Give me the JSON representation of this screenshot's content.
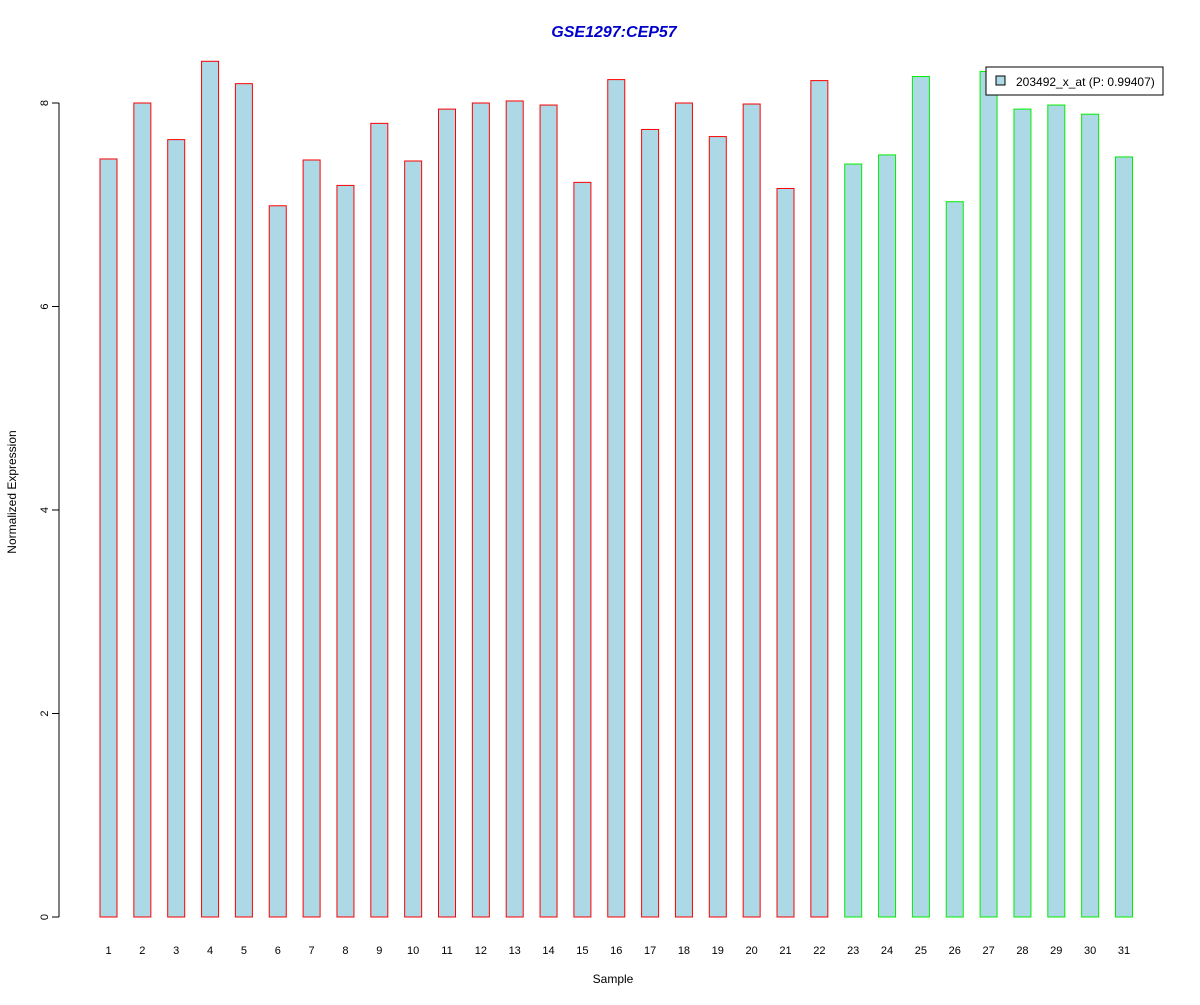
{
  "colors": {
    "title": "#0000CC",
    "bar_fill": "#ADD8E6",
    "group1_border": "#FF0000",
    "group2_border": "#00EE00",
    "axis": "#000000"
  },
  "chart_data": {
    "type": "bar",
    "title": "GSE1297:CEP57",
    "xlabel": "Sample",
    "ylabel": "Normalized Expression",
    "ylim": [
      0,
      8.5
    ],
    "yticks": [
      0,
      2,
      4,
      6,
      8
    ],
    "grid": false,
    "legend": {
      "position": "top-right",
      "label": "203492_x_at (P: 0.99407)"
    },
    "categories": [
      "1",
      "2",
      "3",
      "4",
      "5",
      "6",
      "7",
      "8",
      "9",
      "10",
      "11",
      "12",
      "13",
      "14",
      "15",
      "16",
      "17",
      "18",
      "19",
      "20",
      "21",
      "22",
      "23",
      "24",
      "25",
      "26",
      "27",
      "28",
      "29",
      "30",
      "31"
    ],
    "series": [
      {
        "name": "203492_x_at (P: 0.99407)",
        "values": [
          7.45,
          8.0,
          7.64,
          8.41,
          8.19,
          6.99,
          7.44,
          7.19,
          7.8,
          7.43,
          7.94,
          8.0,
          8.02,
          7.98,
          7.22,
          8.23,
          7.74,
          8.0,
          7.67,
          7.99,
          7.16,
          8.22,
          7.4,
          7.49,
          8.26,
          7.03,
          8.31,
          7.94,
          7.98,
          7.89,
          7.47
        ],
        "group": [
          1,
          1,
          1,
          1,
          1,
          1,
          1,
          1,
          1,
          1,
          1,
          1,
          1,
          1,
          1,
          1,
          1,
          1,
          1,
          1,
          1,
          1,
          2,
          2,
          2,
          2,
          2,
          2,
          2,
          2,
          2
        ]
      }
    ]
  }
}
